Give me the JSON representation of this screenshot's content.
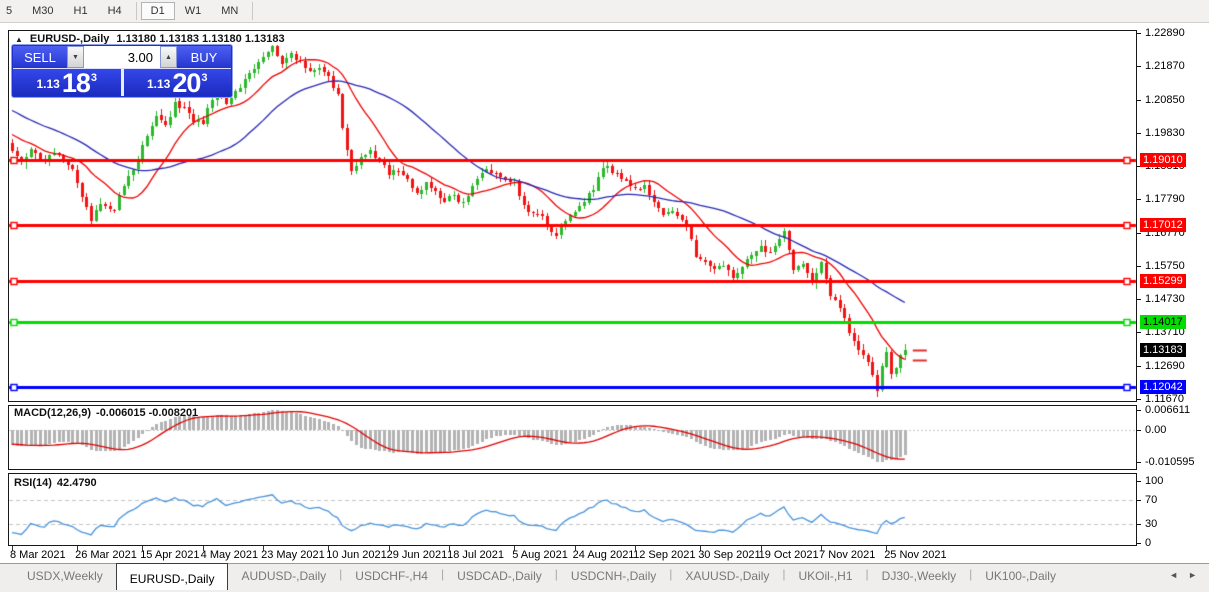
{
  "toolbar": {
    "timeframes": [
      {
        "label": "5",
        "active": false,
        "divider_after": false
      },
      {
        "label": "M30",
        "active": false,
        "divider_after": false
      },
      {
        "label": "H1",
        "active": false,
        "divider_after": false
      },
      {
        "label": "H4",
        "active": false,
        "divider_after": true
      },
      {
        "label": "D1",
        "active": true,
        "divider_after": false
      },
      {
        "label": "W1",
        "active": false,
        "divider_after": false
      },
      {
        "label": "MN",
        "active": false,
        "divider_after": true
      }
    ]
  },
  "chart": {
    "collapse_icon": "▲",
    "symbol_title": "EURUSD-,Daily",
    "ohlc_text": "1.13180 1.13183 1.13180 1.13183",
    "trade_panel": {
      "sell_label": "SELL",
      "buy_label": "BUY",
      "volume": "3.00",
      "down_icon": "▼",
      "up_icon": "▲",
      "bid": {
        "prefix": "1.13",
        "main": "18",
        "sup": "3"
      },
      "ask": {
        "prefix": "1.13",
        "main": "20",
        "sup": "3"
      }
    },
    "price_axis_ticks": [
      "1.22890",
      "1.21870",
      "1.20850",
      "1.19830",
      "1.18810",
      "1.17790",
      "1.16770",
      "1.15750",
      "1.14730",
      "1.13710",
      "1.12690",
      "1.11670"
    ],
    "hlines": [
      {
        "label": "1.19010",
        "price": 1.1901,
        "color": "#ff0000",
        "text_color": "#ffffff"
      },
      {
        "label": "1.17012",
        "price": 1.17012,
        "color": "#ff0000",
        "text_color": "#ffffff"
      },
      {
        "label": "1.15299",
        "price": 1.15299,
        "color": "#ff0000",
        "text_color": "#ffffff"
      },
      {
        "label": "1.14017",
        "price": 1.14017,
        "color": "#00dd00",
        "text_color": "#000000"
      },
      {
        "label": "1.12042",
        "price": 1.12042,
        "color": "#0000ff",
        "text_color": "#ffffff"
      }
    ],
    "current_price": {
      "label": "1.13183",
      "price": 1.13183,
      "bg": "#000000",
      "text_color": "#ffffff",
      "open_mark": 1.1287
    },
    "date_axis": [
      {
        "label": "8 Mar 2021",
        "bar": 0
      },
      {
        "label": "26 Mar 2021",
        "bar": 14
      },
      {
        "label": "15 Apr 2021",
        "bar": 28
      },
      {
        "label": "4 May 2021",
        "bar": 41
      },
      {
        "label": "23 May 2021",
        "bar": 54
      },
      {
        "label": "10 Jun 2021",
        "bar": 68
      },
      {
        "label": "29 Jun 2021",
        "bar": 81
      },
      {
        "label": "18 Jul 2021",
        "bar": 94
      },
      {
        "label": "5 Aug 2021",
        "bar": 108
      },
      {
        "label": "24 Aug 2021",
        "bar": 121
      },
      {
        "label": "12 Sep 2021",
        "bar": 134
      },
      {
        "label": "30 Sep 2021",
        "bar": 148
      },
      {
        "label": "19 Oct 2021",
        "bar": 161
      },
      {
        "label": "7 Nov 2021",
        "bar": 174
      },
      {
        "label": "25 Nov 2021",
        "bar": 188
      }
    ],
    "bar_count": 193,
    "close_anchors": [
      [
        0,
        1.1926
      ],
      [
        2,
        1.1893
      ],
      [
        4,
        1.1932
      ],
      [
        7,
        1.1896
      ],
      [
        9,
        1.1922
      ],
      [
        13,
        1.1871
      ],
      [
        15,
        1.1786
      ],
      [
        17,
        1.1712
      ],
      [
        19,
        1.1766
      ],
      [
        22,
        1.1746
      ],
      [
        24,
        1.1821
      ],
      [
        26,
        1.1869
      ],
      [
        28,
        1.1947
      ],
      [
        31,
        1.2035
      ],
      [
        33,
        1.2006
      ],
      [
        35,
        1.2079
      ],
      [
        37,
        1.206
      ],
      [
        39,
        1.2017
      ],
      [
        41,
        1.2012
      ],
      [
        44,
        1.213
      ],
      [
        46,
        1.2073
      ],
      [
        49,
        1.2121
      ],
      [
        52,
        1.2179
      ],
      [
        54,
        1.2215
      ],
      [
        56,
        1.225
      ],
      [
        58,
        1.2195
      ],
      [
        60,
        1.2227
      ],
      [
        62,
        1.2205
      ],
      [
        64,
        1.2171
      ],
      [
        66,
        1.2182
      ],
      [
        68,
        1.2157
      ],
      [
        70,
        1.2102
      ],
      [
        71,
        1.1997
      ],
      [
        73,
        1.1866
      ],
      [
        75,
        1.1909
      ],
      [
        77,
        1.1929
      ],
      [
        79,
        1.1896
      ],
      [
        81,
        1.1852
      ],
      [
        83,
        1.1867
      ],
      [
        85,
        1.1842
      ],
      [
        87,
        1.1797
      ],
      [
        89,
        1.1831
      ],
      [
        91,
        1.1804
      ],
      [
        93,
        1.1773
      ],
      [
        95,
        1.1792
      ],
      [
        97,
        1.1771
      ],
      [
        99,
        1.1821
      ],
      [
        102,
        1.1871
      ],
      [
        104,
        1.1859
      ],
      [
        106,
        1.1839
      ],
      [
        108,
        1.1833
      ],
      [
        110,
        1.1761
      ],
      [
        112,
        1.1737
      ],
      [
        114,
        1.1729
      ],
      [
        116,
        1.1679
      ],
      [
        117,
        1.1667
      ],
      [
        119,
        1.1714
      ],
      [
        121,
        1.1741
      ],
      [
        123,
        1.1771
      ],
      [
        125,
        1.1807
      ],
      [
        127,
        1.1875
      ],
      [
        128,
        1.1881
      ],
      [
        130,
        1.1859
      ],
      [
        132,
        1.1837
      ],
      [
        134,
        1.1813
      ],
      [
        136,
        1.1823
      ],
      [
        138,
        1.1771
      ],
      [
        140,
        1.1731
      ],
      [
        142,
        1.1743
      ],
      [
        144,
        1.1717
      ],
      [
        145,
        1.1695
      ],
      [
        147,
        1.1603
      ],
      [
        149,
        1.1587
      ],
      [
        151,
        1.1565
      ],
      [
        153,
        1.1575
      ],
      [
        155,
        1.1537
      ],
      [
        157,
        1.1571
      ],
      [
        159,
        1.1607
      ],
      [
        161,
        1.1637
      ],
      [
        163,
        1.1617
      ],
      [
        165,
        1.1659
      ],
      [
        166,
        1.1681
      ],
      [
        168,
        1.1563
      ],
      [
        170,
        1.1581
      ],
      [
        172,
        1.1523
      ],
      [
        174,
        1.1587
      ],
      [
        176,
        1.1481
      ],
      [
        178,
        1.1447
      ],
      [
        180,
        1.1371
      ],
      [
        182,
        1.1317
      ],
      [
        184,
        1.1281
      ],
      [
        186,
        1.1192
      ],
      [
        187,
        1.1267
      ],
      [
        188,
        1.1311
      ],
      [
        189,
        1.1243
      ],
      [
        190,
        1.1261
      ],
      [
        191,
        1.1301
      ],
      [
        192,
        1.13183
      ]
    ],
    "ma": {
      "fast_period": 13,
      "slow_period": 34,
      "fast_color": "#ee0000",
      "slow_color": "#2828b4"
    },
    "colors": {
      "bull": "#2eb82e",
      "bear": "#f01414"
    }
  },
  "macd": {
    "name": "MACD(12,26,9)",
    "values_text": "-0.006015 -0.008201",
    "fast": 12,
    "slow": 26,
    "signal": 9,
    "ticks": [
      {
        "label": "0.006611",
        "value": 0.006611
      },
      {
        "label": "0.00",
        "value": 0
      },
      {
        "label": "-0.010595",
        "value": -0.010595
      }
    ],
    "histogram_color": "#b3b3b3",
    "signal_color": "#e00000"
  },
  "rsi": {
    "name": "RSI(14)",
    "value_text": "42.4790",
    "period": 14,
    "ticks": [
      {
        "label": "100",
        "value": 100
      },
      {
        "label": "70",
        "value": 70
      },
      {
        "label": "30",
        "value": 30
      },
      {
        "label": "0",
        "value": 0
      }
    ],
    "levels": [
      70,
      30
    ],
    "color": "#4a94dc"
  },
  "tabs": {
    "items": [
      "USDX,Weekly",
      "EURUSD-,Daily",
      "AUDUSD-,Daily",
      "USDCHF-,H4",
      "USDCAD-,Daily",
      "USDCNH-,Daily",
      "XAUUSD-,Daily",
      "UKOil-,H1",
      "DJ30-,Weekly",
      "UK100-,Daily"
    ],
    "active_index": 1,
    "left_arrow": "◄",
    "right_arrow": "►"
  }
}
